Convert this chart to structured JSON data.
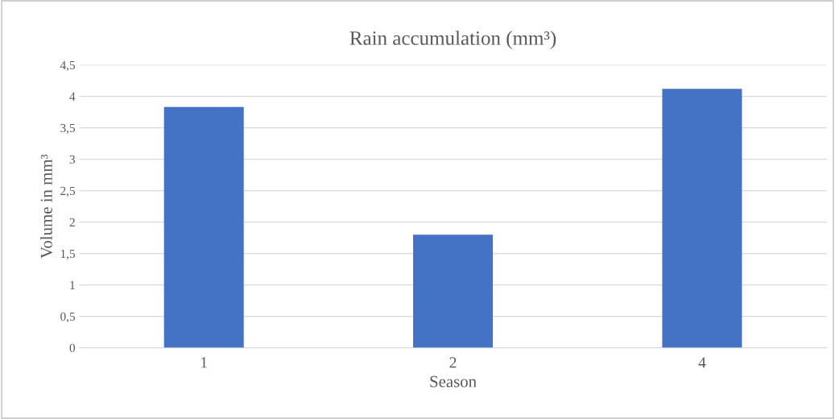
{
  "chart_data": {
    "type": "bar",
    "title": "Rain accumulation (mm³)",
    "xlabel": "Season",
    "ylabel": "Volume in mm³",
    "categories": [
      "1",
      "2",
      "4"
    ],
    "values": [
      3.83,
      1.8,
      4.12
    ],
    "color": "#4472c4",
    "ylim": [
      0,
      4.5
    ],
    "yticks": [
      0,
      {
        "value": 0.5,
        "label": "0,5"
      },
      1,
      {
        "value": 1.5,
        "label": "1,5"
      },
      2,
      {
        "value": 2.5,
        "label": "2,5"
      },
      3,
      {
        "value": 3.5,
        "label": "3,5"
      },
      4,
      {
        "value": 4.5,
        "label": "4,5"
      }
    ],
    "grid": "y"
  }
}
